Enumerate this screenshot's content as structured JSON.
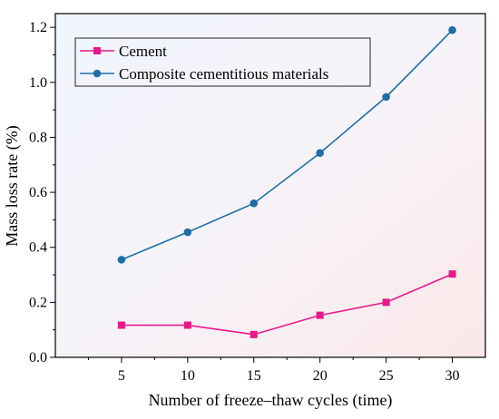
{
  "chart_data": {
    "type": "line",
    "xlabel": "Number of freeze–thaw cycles (time)",
    "ylabel": "Mass loss rate (%)",
    "x": [
      5,
      10,
      15,
      20,
      25,
      30
    ],
    "xlim": [
      0,
      32.5
    ],
    "ylim": [
      0,
      1.25
    ],
    "xticks": [
      "5",
      "10",
      "15",
      "20",
      "25",
      "30"
    ],
    "yticks": [
      "0.0",
      "0.2",
      "0.4",
      "0.6",
      "0.8",
      "1.0",
      "1.2"
    ],
    "legend_position": "top-left",
    "grid": false,
    "series": [
      {
        "name": "Cement",
        "values": [
          0.117,
          0.117,
          0.083,
          0.153,
          0.2,
          0.303
        ],
        "color": "#e8188a",
        "marker": "square"
      },
      {
        "name": "Composite cementitious materials",
        "values": [
          0.355,
          0.455,
          0.56,
          0.743,
          0.947,
          1.19
        ],
        "color": "#1f6ea8",
        "marker": "circle"
      }
    ]
  }
}
